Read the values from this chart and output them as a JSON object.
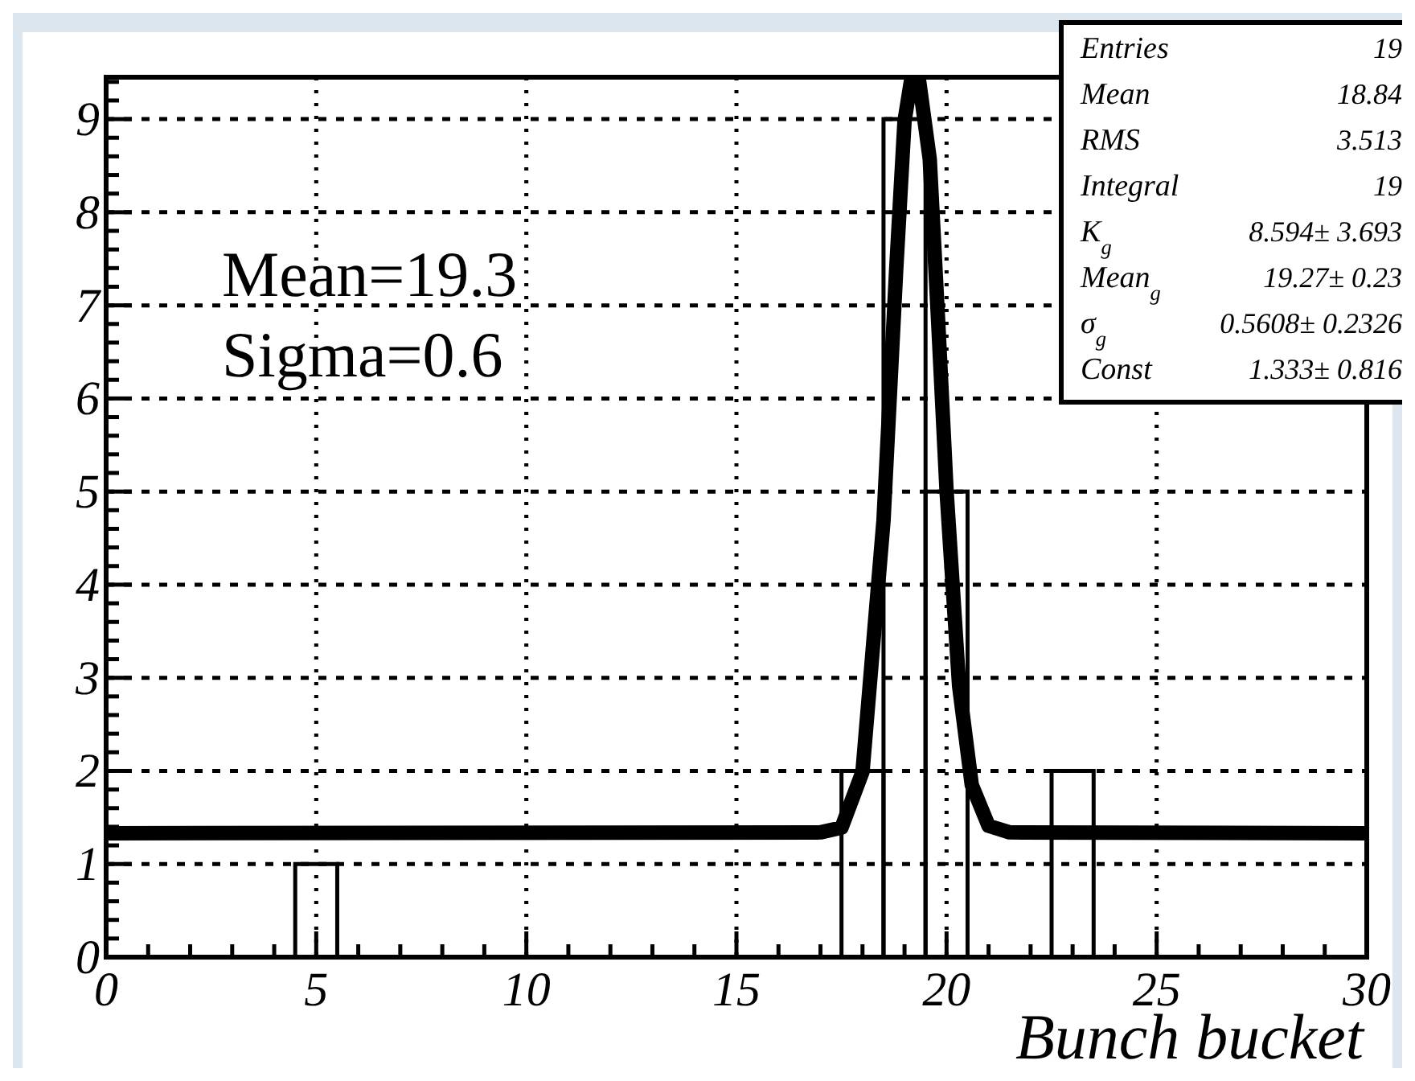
{
  "chart_data": {
    "type": "histogram",
    "xlabel": "Bunch bucket",
    "xlim": [
      0,
      30
    ],
    "xticks": [
      0,
      5,
      10,
      15,
      20,
      25,
      30
    ],
    "ylim": [
      0,
      9.45
    ],
    "yticks": [
      0,
      1,
      2,
      3,
      4,
      5,
      6,
      7,
      8,
      9
    ],
    "grid": true,
    "annotations": [
      "Mean=19.3",
      "Sigma=0.6",
      "Entries",
      "19",
      "Mean",
      "18.84",
      "RMS",
      "3.513",
      "Integral",
      "19",
      "K$_{g}$",
      "8.594± 3.693",
      "Mean$_{g}$",
      "19.27± 0.23",
      "σ$_{g}$",
      "0.5608± 0.2326",
      "Const",
      "1.333± 0.816"
    ],
    "series": [
      {
        "color": "#000000",
        "bins": [
          0.5,
          1.5,
          2.5,
          3.5,
          4.5,
          5.5,
          6.5,
          7.5,
          8.5,
          9.5,
          10.5,
          11.5,
          12.5,
          13.5,
          14.5,
          15.5,
          16.5,
          17.5,
          18.5,
          19.5,
          20.5,
          21.5,
          22.5,
          23.5,
          24.5,
          25.5,
          26.5,
          27.5,
          28.5,
          29.5
        ],
        "values": [
          0,
          0,
          0,
          0,
          1,
          0,
          0,
          0,
          0,
          0,
          0,
          0,
          0,
          0,
          0,
          0,
          0,
          2,
          9,
          5,
          0,
          0,
          2,
          0,
          0,
          0,
          0,
          0,
          0
        ]
      },
      {
        "type": "line",
        "color": "#000000",
        "x": [
          0,
          17,
          17.5,
          18,
          18.5,
          18.8,
          19,
          19.15,
          19.35,
          19.6,
          19.8,
          20,
          20.3,
          20.6,
          21,
          21.5,
          30
        ],
        "values": [
          1.33,
          1.34,
          1.39,
          1.99,
          4.69,
          7.37,
          8.98,
          9.4,
          9.4,
          8.57,
          6.83,
          5.01,
          2.91,
          1.85,
          1.41,
          1.34,
          1.33
        ]
      }
    ]
  }
}
